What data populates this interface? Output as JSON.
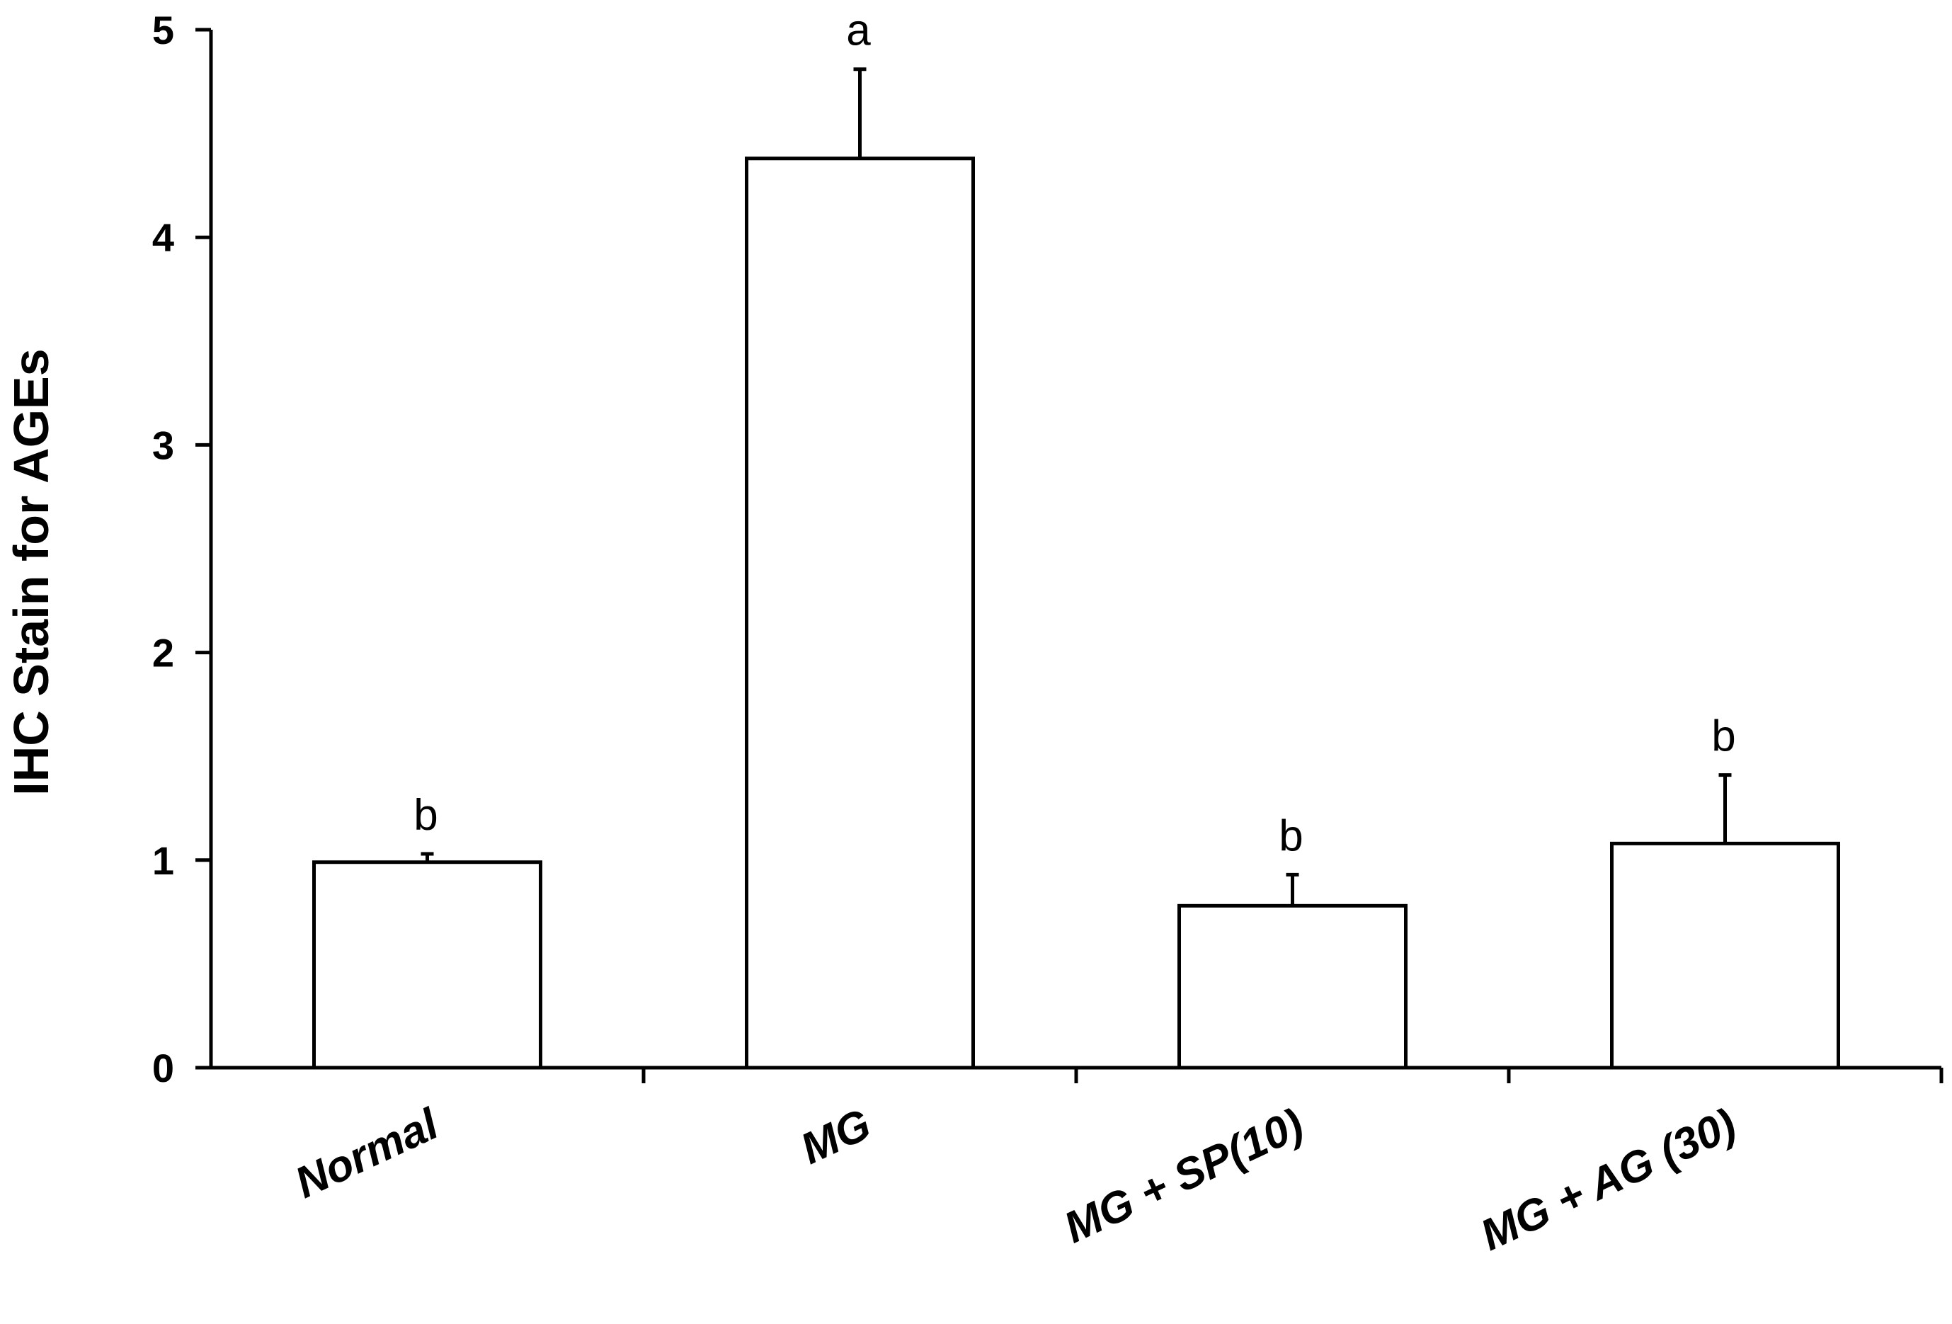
{
  "chart_data": {
    "type": "bar",
    "title": "",
    "xlabel": "",
    "ylabel": "IHC Stain for AGEs",
    "categories": [
      "Normal",
      "MG",
      "MG + SP(10)",
      "MG + AG (30)"
    ],
    "series": [
      {
        "values": [
          0.99,
          4.38,
          0.78,
          1.08
        ],
        "errors": [
          0.04,
          0.43,
          0.15,
          0.33
        ],
        "significance": [
          "b",
          "a",
          "b",
          "b"
        ]
      }
    ],
    "ylim": [
      0,
      5
    ],
    "yticks": [
      "0",
      "1",
      "2",
      "3",
      "4",
      "5"
    ],
    "grid": false,
    "legend": "none",
    "bar_fill": "#ffffff",
    "bar_stroke": "#000000"
  }
}
